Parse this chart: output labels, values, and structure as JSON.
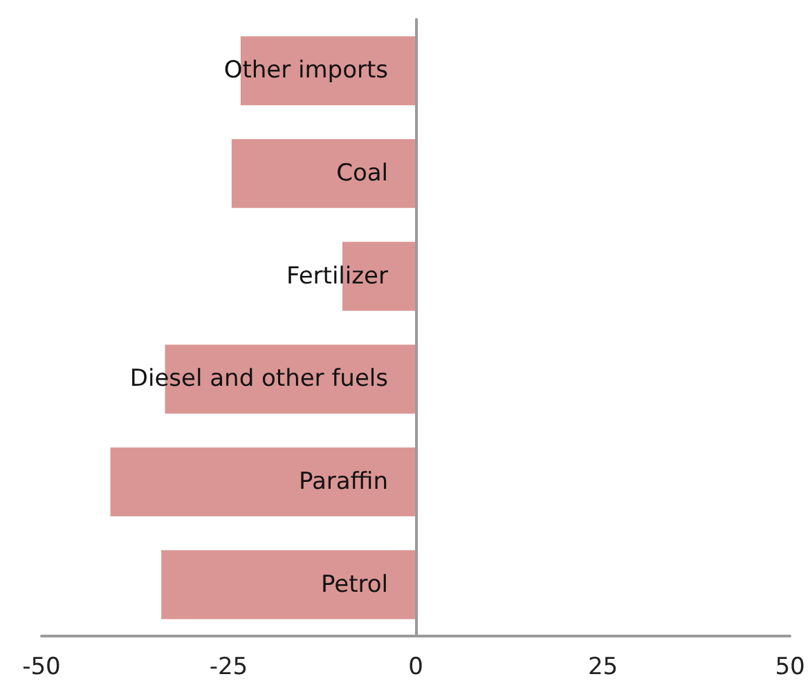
{
  "chart_data": {
    "type": "bar",
    "orientation": "horizontal",
    "categories": [
      "Other imports",
      "Coal",
      "Fertilizer",
      "Diesel and other fuels",
      "Paraffin",
      "Petrol"
    ],
    "values": [
      -23.4,
      -24.6,
      -9.8,
      -33.5,
      -40.8,
      -34.0
    ],
    "color": "#da9694",
    "xlim": [
      -50,
      50
    ],
    "xticks": [
      -50,
      -25,
      0,
      25,
      50
    ],
    "grid": false
  }
}
